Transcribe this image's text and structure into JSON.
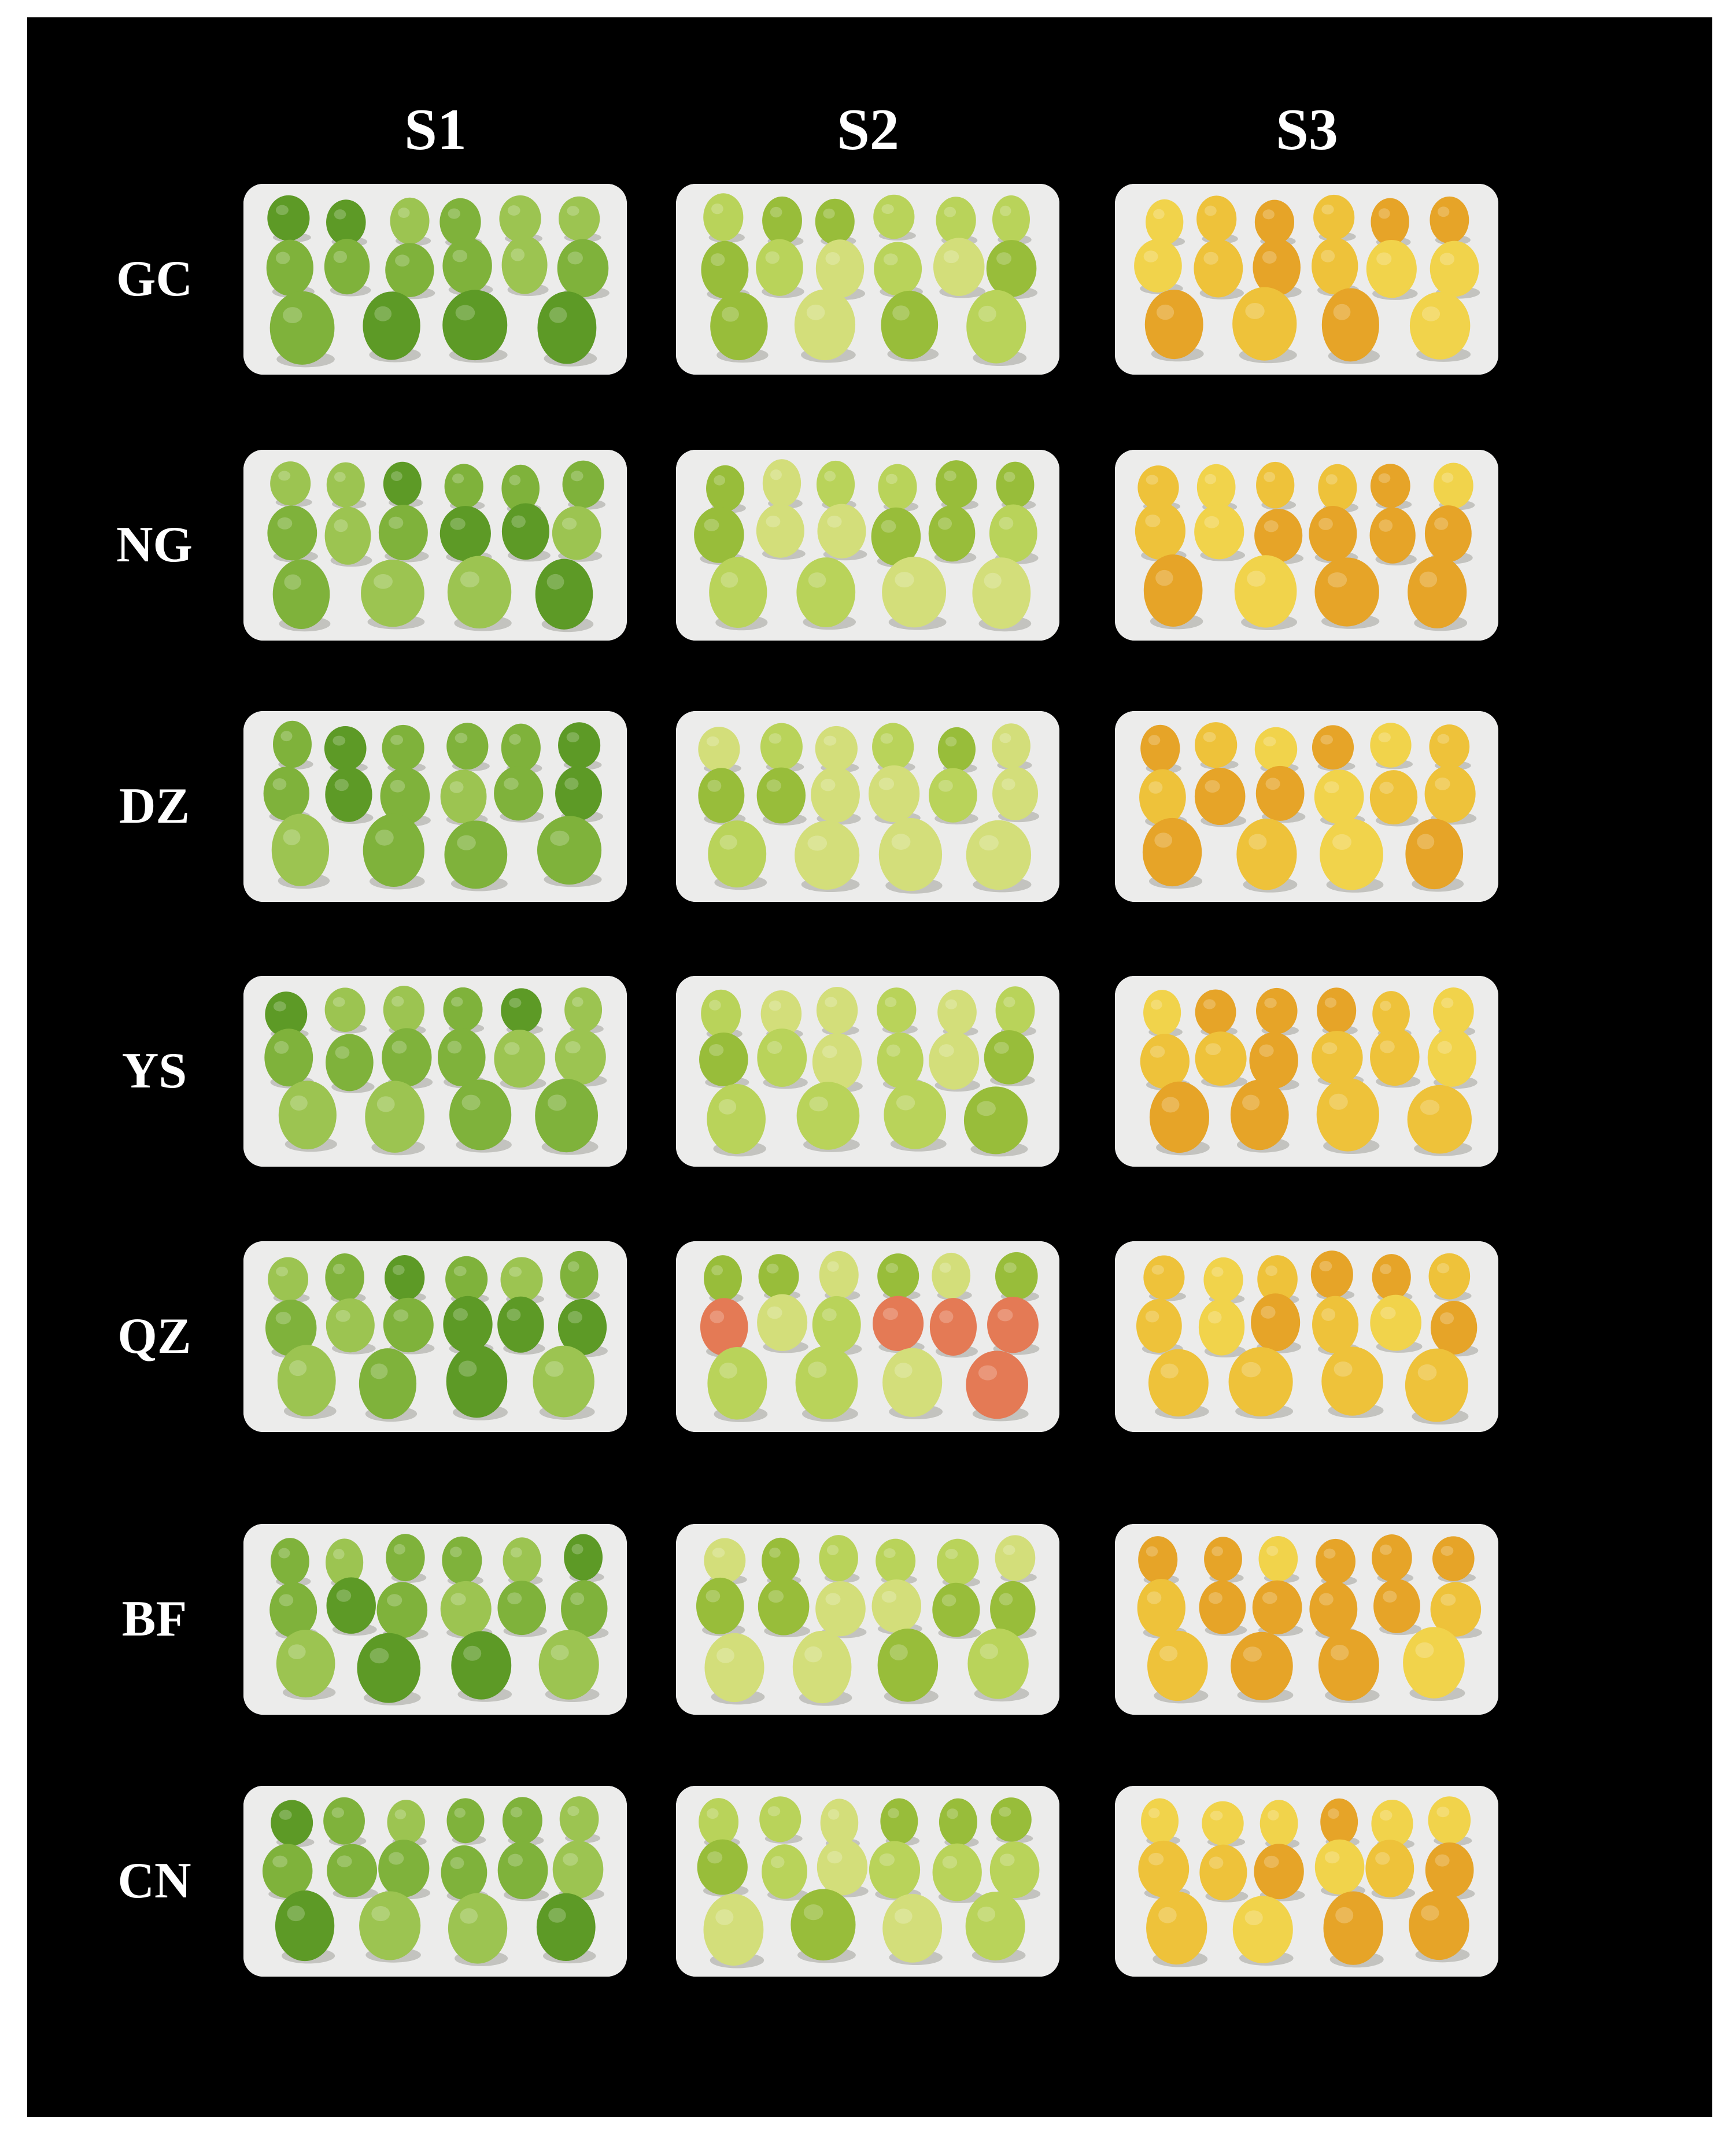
{
  "columns": [
    "S1",
    "S2",
    "S3"
  ],
  "rows": [
    "GC",
    "NG",
    "DZ",
    "YS",
    "QZ",
    "BF",
    "CN"
  ],
  "palette": {
    "S1": [
      "#7fb23b",
      "#5d9a26",
      "#9cc451"
    ],
    "S2": [
      "#b9d35a",
      "#98bd3a",
      "#d3de7a"
    ],
    "S3": [
      "#eec23a",
      "#e6a428",
      "#f1d34b"
    ],
    "QZ_S2_blush": "#e47a55",
    "background": "#ececeb"
  }
}
